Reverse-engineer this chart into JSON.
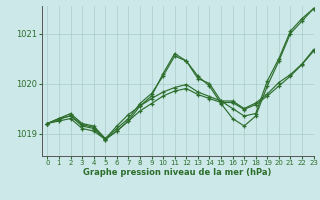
{
  "title": "Graphe pression niveau de la mer (hPa)",
  "background_color": "#cce8e8",
  "grid_color": "#aacccc",
  "line_color": "#2d6e2d",
  "xlim": [
    -0.5,
    23
  ],
  "ylim": [
    1018.55,
    1021.55
  ],
  "yticks": [
    1019,
    1020,
    1021
  ],
  "xticks": [
    0,
    1,
    2,
    3,
    4,
    5,
    6,
    7,
    8,
    9,
    10,
    11,
    12,
    13,
    14,
    15,
    16,
    17,
    18,
    19,
    20,
    21,
    22,
    23
  ],
  "series": [
    [
      1019.2,
      1019.3,
      1019.4,
      1019.2,
      1019.15,
      1018.9,
      1019.1,
      1019.3,
      1019.6,
      1019.8,
      1020.15,
      1020.55,
      1020.45,
      1020.1,
      1020.0,
      1019.65,
      1019.5,
      1019.35,
      1019.4,
      1020.05,
      1020.5,
      1021.05,
      1021.3,
      1021.5
    ],
    [
      1019.2,
      1019.3,
      1019.35,
      1019.15,
      1019.1,
      1018.88,
      1019.05,
      1019.25,
      1019.45,
      1019.6,
      1019.75,
      1019.85,
      1019.9,
      1019.78,
      1019.7,
      1019.62,
      1019.62,
      1019.48,
      1019.58,
      1019.75,
      1019.95,
      1020.15,
      1020.38,
      1020.65
    ],
    [
      1019.2,
      1019.28,
      1019.36,
      1019.18,
      1019.12,
      1018.89,
      1019.15,
      1019.38,
      1019.55,
      1019.7,
      1019.83,
      1019.92,
      1019.98,
      1019.83,
      1019.74,
      1019.65,
      1019.65,
      1019.5,
      1019.61,
      1019.79,
      1020.02,
      1020.18,
      1020.39,
      1020.68
    ],
    [
      1019.2,
      1019.25,
      1019.3,
      1019.1,
      1019.05,
      1018.88,
      1019.05,
      1019.25,
      1019.55,
      1019.75,
      1020.2,
      1020.6,
      1020.45,
      1020.15,
      1019.95,
      1019.6,
      1019.3,
      1019.15,
      1019.35,
      1019.95,
      1020.45,
      1021.0,
      1021.25,
      1021.5
    ]
  ]
}
